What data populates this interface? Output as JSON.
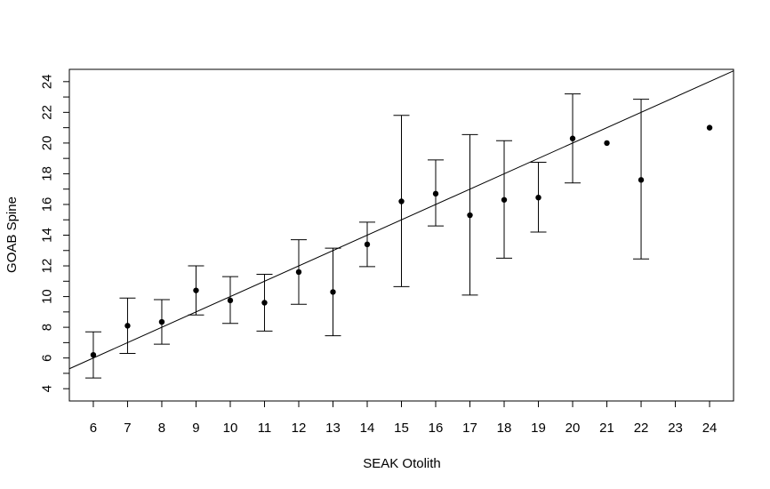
{
  "chart_data": {
    "type": "scatter",
    "title": "",
    "xlabel": "SEAK Otolith",
    "ylabel": "GOAB Spine",
    "xlim": [
      5.3,
      24.7
    ],
    "ylim": [
      3.2,
      24.8
    ],
    "xticks": [
      6,
      7,
      8,
      9,
      10,
      11,
      12,
      13,
      14,
      15,
      16,
      17,
      18,
      19,
      20,
      21,
      22,
      23,
      24
    ],
    "yticks": [
      4,
      5,
      6,
      7,
      8,
      9,
      10,
      11,
      12,
      13,
      14,
      15,
      16,
      17,
      18,
      19,
      20,
      21,
      22,
      23,
      24
    ],
    "ytick_labels": [
      4,
      6,
      8,
      10,
      12,
      14,
      16,
      18,
      20,
      22,
      24
    ],
    "grid": false,
    "reference_line": {
      "intercept": 0,
      "slope": 1
    },
    "points": [
      {
        "x": 6,
        "y": 6.2,
        "lo": 4.7,
        "hi": 7.7
      },
      {
        "x": 7,
        "y": 8.1,
        "lo": 6.3,
        "hi": 9.9
      },
      {
        "x": 8,
        "y": 8.35,
        "lo": 6.9,
        "hi": 9.8
      },
      {
        "x": 9,
        "y": 10.4,
        "lo": 8.8,
        "hi": 12.0
      },
      {
        "x": 10,
        "y": 9.75,
        "lo": 8.25,
        "hi": 11.3
      },
      {
        "x": 11,
        "y": 9.6,
        "lo": 7.75,
        "hi": 11.45
      },
      {
        "x": 12,
        "y": 11.6,
        "lo": 9.5,
        "hi": 13.7
      },
      {
        "x": 13,
        "y": 10.3,
        "lo": 7.45,
        "hi": 13.15
      },
      {
        "x": 14,
        "y": 13.4,
        "lo": 11.95,
        "hi": 14.85
      },
      {
        "x": 15,
        "y": 16.2,
        "lo": 10.65,
        "hi": 21.8
      },
      {
        "x": 16,
        "y": 16.7,
        "lo": 14.6,
        "hi": 18.9
      },
      {
        "x": 17,
        "y": 15.3,
        "lo": 10.1,
        "hi": 20.55
      },
      {
        "x": 18,
        "y": 16.3,
        "lo": 12.5,
        "hi": 20.15
      },
      {
        "x": 19,
        "y": 16.45,
        "lo": 14.2,
        "hi": 18.75
      },
      {
        "x": 20,
        "y": 20.3,
        "lo": 17.4,
        "hi": 23.2
      },
      {
        "x": 21,
        "y": 20.0,
        "lo": null,
        "hi": null
      },
      {
        "x": 22,
        "y": 17.6,
        "lo": 12.45,
        "hi": 22.85
      },
      {
        "x": 24,
        "y": 21.0,
        "lo": null,
        "hi": null
      }
    ]
  }
}
